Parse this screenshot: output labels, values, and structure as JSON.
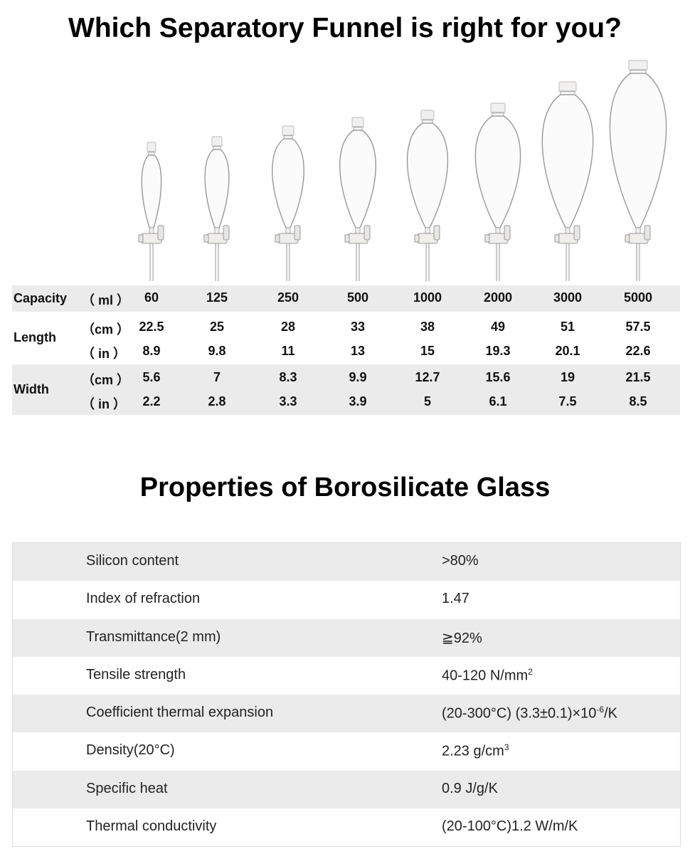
{
  "header": {
    "title": "Which Separatory Funnel is right for you?"
  },
  "size_table": {
    "columns": [
      60,
      125,
      250,
      500,
      1000,
      2000,
      3000,
      5000
    ],
    "rows": [
      {
        "label": "Capacity",
        "units": [
          {
            "unit": "（ ml ）",
            "values": [
              60,
              125,
              250,
              500,
              1000,
              2000,
              3000,
              5000
            ]
          }
        ]
      },
      {
        "label": "Length",
        "units": [
          {
            "unit": "（cm ）",
            "values": [
              22.5,
              25,
              28,
              33,
              38,
              49,
              51,
              57.5
            ]
          },
          {
            "unit": "（ in ）",
            "values": [
              8.9,
              9.8,
              11,
              13,
              15,
              19.3,
              20.1,
              22.6
            ]
          }
        ]
      },
      {
        "label": "Width",
        "units": [
          {
            "unit": "（cm ）",
            "values": [
              5.6,
              7,
              8.3,
              9.9,
              12.7,
              15.6,
              19,
              21.5
            ]
          },
          {
            "unit": "（ in ）",
            "values": [
              2.2,
              2.8,
              3.3,
              3.9,
              5,
              6.1,
              7.5,
              8.5
            ]
          }
        ]
      }
    ]
  },
  "properties": {
    "title": "Properties of Borosilicate Glass",
    "rows": [
      {
        "label": "Silicon content",
        "value": [
          {
            "text": ">80%"
          }
        ]
      },
      {
        "label": "Index of refraction",
        "value": [
          {
            "text": "1.47"
          }
        ]
      },
      {
        "label": "Transmittance(2 mm)",
        "value": [
          {
            "text": "≧92%"
          }
        ]
      },
      {
        "label": "Tensile strength",
        "value": [
          {
            "text": "40-120 N/mm"
          },
          {
            "text": "2",
            "sup": true
          }
        ]
      },
      {
        "label": "Coefficient thermal expansion",
        "value": [
          {
            "text": "(20-300°C) (3.3±0.1)×10"
          },
          {
            "text": "-6",
            "sup": true
          },
          {
            "text": "/K"
          }
        ]
      },
      {
        "label": "Density(20°C)",
        "value": [
          {
            "text": "2.23 g/cm"
          },
          {
            "text": "3",
            "sup": true
          }
        ]
      },
      {
        "label": "Specific heat",
        "value": [
          {
            "text": "0.9 J/g/K"
          }
        ]
      },
      {
        "label": "Thermal conductivity",
        "value": [
          {
            "text": "(20-100°C)1.2 W/m/K"
          }
        ]
      }
    ]
  }
}
